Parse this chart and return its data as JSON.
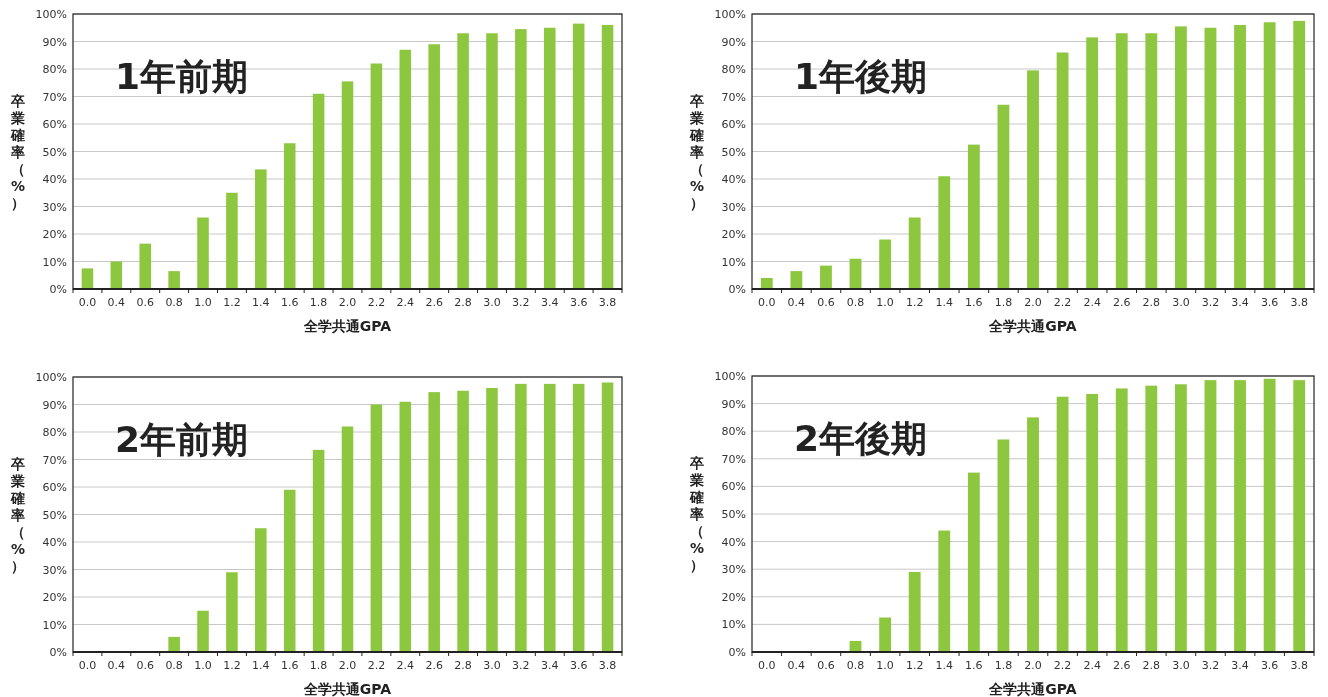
{
  "chart_data": [
    {
      "type": "bar",
      "title": "1年前期",
      "xlabel": "全学共通GPA",
      "ylabel": "卒業確率（%）",
      "categories": [
        "0.0",
        "0.4",
        "0.6",
        "0.8",
        "1.0",
        "1.2",
        "1.4",
        "1.6",
        "1.8",
        "2.0",
        "2.2",
        "2.4",
        "2.6",
        "2.8",
        "3.0",
        "3.2",
        "3.4",
        "3.6",
        "3.8"
      ],
      "color": "#8dc63f",
      "values": [
        7.5,
        10,
        16.5,
        6.5,
        26,
        35,
        43.5,
        53,
        71,
        75.5,
        82,
        87,
        89,
        93,
        93,
        94.5,
        95,
        96.5,
        96
      ],
      "ylim": [
        0,
        100
      ],
      "yticks": [
        {
          "value": 0,
          "label": "0%"
        },
        {
          "value": 10,
          "label": "10%"
        },
        {
          "value": 20,
          "label": "20%"
        },
        {
          "value": 30,
          "label": "30%"
        },
        {
          "value": 40,
          "label": "40%"
        },
        {
          "value": 50,
          "label": "50%"
        },
        {
          "value": 60,
          "label": "60%"
        },
        {
          "value": 70,
          "label": "70%"
        },
        {
          "value": 80,
          "label": "80%"
        },
        {
          "value": 90,
          "label": "90%"
        },
        {
          "value": 100,
          "label": "100%"
        }
      ],
      "grid": "y"
    },
    {
      "type": "bar",
      "title": "1年後期",
      "xlabel": "全学共通GPA",
      "ylabel": "卒業確率（%）",
      "categories": [
        "0.0",
        "0.4",
        "0.6",
        "0.8",
        "1.0",
        "1.2",
        "1.4",
        "1.6",
        "1.8",
        "2.0",
        "2.2",
        "2.4",
        "2.6",
        "2.8",
        "3.0",
        "3.2",
        "3.4",
        "3.6",
        "3.8"
      ],
      "color": "#8dc63f",
      "values": [
        4,
        6.5,
        8.5,
        11,
        18,
        26,
        41,
        52.5,
        67,
        79.5,
        86,
        91.5,
        93,
        93,
        95.5,
        95,
        96,
        97,
        97.5
      ],
      "ylim": [
        0,
        100
      ],
      "yticks": [
        {
          "value": 0,
          "label": "0%"
        },
        {
          "value": 10,
          "label": "10%"
        },
        {
          "value": 20,
          "label": "20%"
        },
        {
          "value": 30,
          "label": "30%"
        },
        {
          "value": 40,
          "label": "40%"
        },
        {
          "value": 50,
          "label": "50%"
        },
        {
          "value": 60,
          "label": "60%"
        },
        {
          "value": 70,
          "label": "70%"
        },
        {
          "value": 80,
          "label": "80%"
        },
        {
          "value": 90,
          "label": "90%"
        },
        {
          "value": 100,
          "label": "100%"
        }
      ],
      "grid": "y"
    },
    {
      "type": "bar",
      "title": "2年前期",
      "xlabel": "全学共通GPA",
      "ylabel": "卒業確率（%）",
      "categories": [
        "0.0",
        "0.4",
        "0.6",
        "0.8",
        "1.0",
        "1.2",
        "1.4",
        "1.6",
        "1.8",
        "2.0",
        "2.2",
        "2.4",
        "2.6",
        "2.8",
        "3.0",
        "3.2",
        "3.4",
        "3.6",
        "3.8"
      ],
      "color": "#8dc63f",
      "values": [
        0,
        0,
        0,
        5.5,
        15,
        29,
        45,
        59,
        73.5,
        82,
        90,
        91,
        94.5,
        95,
        96,
        97.5,
        97.5,
        97.5,
        98
      ],
      "ylim": [
        0,
        100
      ],
      "yticks": [
        {
          "value": 0,
          "label": "0%"
        },
        {
          "value": 10,
          "label": "10%"
        },
        {
          "value": 20,
          "label": "20%"
        },
        {
          "value": 30,
          "label": "30%"
        },
        {
          "value": 40,
          "label": "40%"
        },
        {
          "value": 50,
          "label": "50%"
        },
        {
          "value": 60,
          "label": "60%"
        },
        {
          "value": 70,
          "label": "70%"
        },
        {
          "value": 80,
          "label": "80%"
        },
        {
          "value": 90,
          "label": "90%"
        },
        {
          "value": 100,
          "label": "100%"
        }
      ],
      "grid": "y"
    },
    {
      "type": "bar",
      "title": "2年後期",
      "xlabel": "全学共通GPA",
      "ylabel": "卒業確率（%）",
      "categories": [
        "0.0",
        "0.4",
        "0.6",
        "0.8",
        "1.0",
        "1.2",
        "1.4",
        "1.6",
        "1.8",
        "2.0",
        "2.2",
        "2.4",
        "2.6",
        "2.8",
        "3.0",
        "3.2",
        "3.4",
        "3.6",
        "3.8"
      ],
      "color": "#8dc63f",
      "values": [
        0,
        0,
        0,
        4,
        12.5,
        29,
        44,
        65,
        77,
        85,
        92.5,
        93.5,
        95.5,
        96.5,
        97,
        98.5,
        98.5,
        99,
        98.5
      ],
      "ylim": [
        0,
        100
      ],
      "yticks": [
        {
          "value": 0,
          "label": "0%"
        },
        {
          "value": 10,
          "label": "10%"
        },
        {
          "value": 20,
          "label": "20%"
        },
        {
          "value": 30,
          "label": "30%"
        },
        {
          "value": 40,
          "label": "40%"
        },
        {
          "value": 50,
          "label": "50%"
        },
        {
          "value": 60,
          "label": "60%"
        },
        {
          "value": 70,
          "label": "70%"
        },
        {
          "value": 80,
          "label": "80%"
        },
        {
          "value": 90,
          "label": "90%"
        },
        {
          "value": 100,
          "label": "100%"
        }
      ],
      "grid": "y"
    }
  ]
}
